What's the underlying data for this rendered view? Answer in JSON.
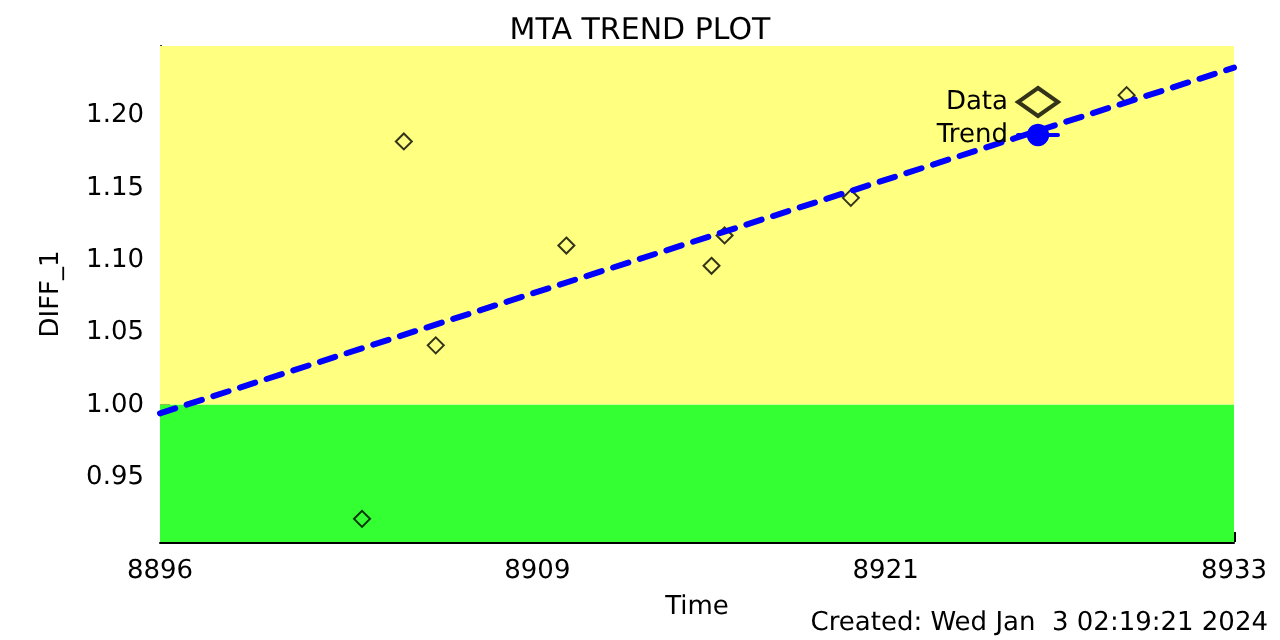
{
  "chart_data": {
    "type": "scatter",
    "title": "MTA TREND PLOT",
    "xlabel": "Time",
    "ylabel": "DIFF_1",
    "annotations": [
      "Created: Wed Jan  3 02:19:21 2024"
    ],
    "xlim": [
      8896,
      8933
    ],
    "xticks": [
      {
        "value": 8896,
        "label": "8896"
      },
      {
        "value": 8909,
        "label": "8909"
      },
      {
        "value": 8921,
        "label": "8921"
      },
      {
        "value": 8933,
        "label": "8933"
      }
    ],
    "ylim": [
      0.905,
      1.248
    ],
    "yticks": [
      {
        "value": 0.95,
        "label": "0.95"
      },
      {
        "value": 1.0,
        "label": "1.00"
      },
      {
        "value": 1.05,
        "label": "1.05"
      },
      {
        "value": 1.1,
        "label": "1.10"
      },
      {
        "value": 1.15,
        "label": "1.15"
      },
      {
        "value": 1.2,
        "label": "1.20"
      }
    ],
    "grid": false,
    "legend": "top right",
    "bands": [
      {
        "axis": "y",
        "from": 0.905,
        "to": 1.0,
        "color": "#33ff33"
      },
      {
        "axis": "y",
        "from": 1.0,
        "to": 1.248,
        "color": "#ffff80"
      }
    ],
    "series": [
      {
        "name": "Data",
        "color": "#000000",
        "marker": "diamond",
        "x": [
          8902.96,
          8904.4,
          8905.5,
          8910.0,
          8915.0,
          8915.45,
          8919.8,
          8929.3
        ],
        "values": [
          0.921,
          1.182,
          1.041,
          1.11,
          1.096,
          1.117,
          1.143,
          1.214
        ]
      },
      {
        "name": "Trend",
        "type": "line",
        "color": "#0000ff",
        "marker": "none",
        "line_style": "dashed",
        "x": [
          8896,
          8933
        ],
        "values": [
          0.994,
          1.233
        ]
      }
    ]
  }
}
